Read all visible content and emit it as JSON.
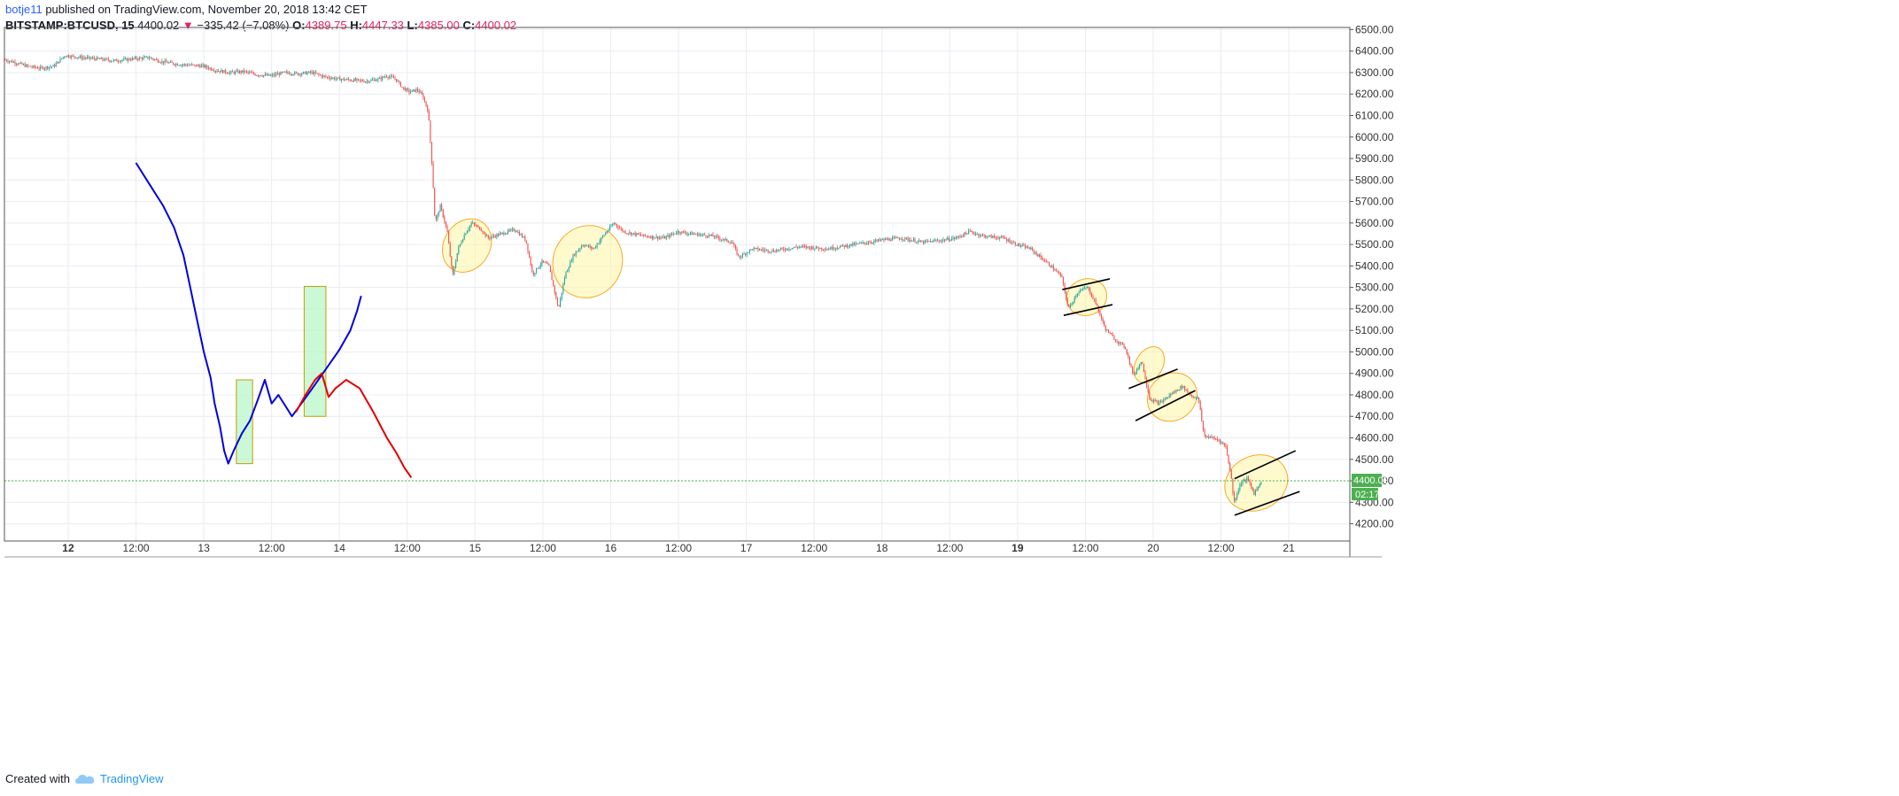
{
  "header": {
    "author": "botje11",
    "published": "published on TradingView.com, November 20, 2018 13:42 CET",
    "symbol": "BITSTAMP:BTCUSD, 15",
    "last": "4400.02",
    "change": "−335.42 (−7.08%)",
    "o_label": "O:",
    "o_value": "4389.75",
    "h_label": "H:",
    "h_value": "4447.33",
    "l_label": "L:",
    "l_value": "4385.00",
    "c_label": "C:",
    "c_value": "4400.02"
  },
  "footer": {
    "created_with": "Created with",
    "brand": "TradingView"
  },
  "colors": {
    "up": "#26a69a",
    "down": "#ef5350",
    "grid": "#e9ecf1",
    "last_price": "#4caf50",
    "ellipse_fill": "#fff59d",
    "ellipse_stroke": "#f9a825",
    "box_fill": "#b9f6ca",
    "box_stroke": "#c0a000",
    "blue_line": "#0000dd",
    "red_line": "#e00000",
    "trend_line": "#000000"
  },
  "chart_data": {
    "type": "candlestick",
    "y_ticks": [
      "4200.00",
      "4300.00",
      "4400.00",
      "4500.00",
      "4600.00",
      "4700.00",
      "4800.00",
      "4900.00",
      "5000.00",
      "5100.00",
      "5200.00",
      "5300.00",
      "5400.00",
      "5500.00",
      "5600.00",
      "5700.00",
      "5800.00",
      "5900.00",
      "6000.00",
      "6100.00",
      "6200.00",
      "6300.00",
      "6400.00",
      "6500.00"
    ],
    "x_ticks": [
      {
        "label": "12",
        "bold": true,
        "day": 12.0
      },
      {
        "label": "12:00",
        "bold": false,
        "day": 12.5
      },
      {
        "label": "13",
        "bold": false,
        "day": 13.0
      },
      {
        "label": "12:00",
        "bold": false,
        "day": 13.5
      },
      {
        "label": "14",
        "bold": false,
        "day": 14.0
      },
      {
        "label": "12:00",
        "bold": false,
        "day": 14.5
      },
      {
        "label": "15",
        "bold": false,
        "day": 15.0
      },
      {
        "label": "12:00",
        "bold": false,
        "day": 15.5
      },
      {
        "label": "16",
        "bold": false,
        "day": 16.0
      },
      {
        "label": "12:00",
        "bold": false,
        "day": 16.5
      },
      {
        "label": "17",
        "bold": false,
        "day": 17.0
      },
      {
        "label": "12:00",
        "bold": false,
        "day": 17.5
      },
      {
        "label": "18",
        "bold": false,
        "day": 18.0
      },
      {
        "label": "12:00",
        "bold": false,
        "day": 18.5
      },
      {
        "label": "19",
        "bold": true,
        "day": 19.0
      },
      {
        "label": "12:00",
        "bold": false,
        "day": 19.5
      },
      {
        "label": "20",
        "bold": false,
        "day": 20.0
      },
      {
        "label": "12:00",
        "bold": false,
        "day": 20.5
      },
      {
        "label": "21",
        "bold": false,
        "day": 21.0
      }
    ],
    "x_range": [
      11.53,
      21.45
    ],
    "y_range": [
      4120,
      6510
    ],
    "last_price": 4400.02,
    "last_price_label": "4400.02",
    "countdown_label": "02:17",
    "price_path": [
      [
        11.53,
        6360
      ],
      [
        11.6,
        6350
      ],
      [
        11.7,
        6330
      ],
      [
        11.8,
        6320
      ],
      [
        11.9,
        6330
      ],
      [
        11.98,
        6380
      ],
      [
        12.1,
        6370
      ],
      [
        12.2,
        6365
      ],
      [
        12.35,
        6355
      ],
      [
        12.5,
        6365
      ],
      [
        12.6,
        6370
      ],
      [
        12.7,
        6350
      ],
      [
        12.8,
        6340
      ],
      [
        12.9,
        6335
      ],
      [
        13.0,
        6330
      ],
      [
        13.1,
        6310
      ],
      [
        13.2,
        6300
      ],
      [
        13.3,
        6305
      ],
      [
        13.4,
        6290
      ],
      [
        13.5,
        6285
      ],
      [
        13.6,
        6300
      ],
      [
        13.7,
        6295
      ],
      [
        13.8,
        6300
      ],
      [
        13.9,
        6280
      ],
      [
        14.0,
        6270
      ],
      [
        14.1,
        6265
      ],
      [
        14.2,
        6260
      ],
      [
        14.3,
        6270
      ],
      [
        14.35,
        6285
      ],
      [
        14.42,
        6270
      ],
      [
        14.47,
        6230
      ],
      [
        14.52,
        6210
      ],
      [
        14.58,
        6220
      ],
      [
        14.62,
        6190
      ],
      [
        14.66,
        6120
      ],
      [
        14.69,
        5850
      ],
      [
        14.71,
        5600
      ],
      [
        14.75,
        5680
      ],
      [
        14.8,
        5560
      ],
      [
        14.84,
        5350
      ],
      [
        14.88,
        5480
      ],
      [
        14.93,
        5550
      ],
      [
        14.98,
        5600
      ],
      [
        15.05,
        5570
      ],
      [
        15.1,
        5530
      ],
      [
        15.2,
        5550
      ],
      [
        15.3,
        5570
      ],
      [
        15.38,
        5520
      ],
      [
        15.43,
        5360
      ],
      [
        15.5,
        5420
      ],
      [
        15.55,
        5400
      ],
      [
        15.62,
        5200
      ],
      [
        15.67,
        5360
      ],
      [
        15.73,
        5450
      ],
      [
        15.8,
        5500
      ],
      [
        15.88,
        5480
      ],
      [
        15.95,
        5540
      ],
      [
        16.03,
        5600
      ],
      [
        16.1,
        5560
      ],
      [
        16.25,
        5540
      ],
      [
        16.4,
        5530
      ],
      [
        16.5,
        5560
      ],
      [
        16.6,
        5550
      ],
      [
        16.75,
        5540
      ],
      [
        16.9,
        5510
      ],
      [
        16.95,
        5440
      ],
      [
        17.05,
        5480
      ],
      [
        17.2,
        5470
      ],
      [
        17.4,
        5490
      ],
      [
        17.6,
        5480
      ],
      [
        17.8,
        5500
      ],
      [
        18.0,
        5520
      ],
      [
        18.15,
        5530
      ],
      [
        18.3,
        5510
      ],
      [
        18.45,
        5520
      ],
      [
        18.55,
        5530
      ],
      [
        18.65,
        5560
      ],
      [
        18.75,
        5540
      ],
      [
        18.9,
        5530
      ],
      [
        19.0,
        5500
      ],
      [
        19.1,
        5480
      ],
      [
        19.25,
        5400
      ],
      [
        19.33,
        5350
      ],
      [
        19.38,
        5200
      ],
      [
        19.45,
        5280
      ],
      [
        19.52,
        5300
      ],
      [
        19.58,
        5230
      ],
      [
        19.65,
        5110
      ],
      [
        19.72,
        5060
      ],
      [
        19.8,
        5020
      ],
      [
        19.86,
        4890
      ],
      [
        19.92,
        4960
      ],
      [
        19.98,
        4780
      ],
      [
        20.05,
        4760
      ],
      [
        20.15,
        4810
      ],
      [
        20.22,
        4840
      ],
      [
        20.28,
        4800
      ],
      [
        20.34,
        4780
      ],
      [
        20.38,
        4610
      ],
      [
        20.44,
        4600
      ],
      [
        20.49,
        4590
      ],
      [
        20.54,
        4560
      ],
      [
        20.58,
        4420
      ],
      [
        20.6,
        4300
      ],
      [
        20.65,
        4390
      ],
      [
        20.7,
        4410
      ],
      [
        20.75,
        4340
      ],
      [
        20.8,
        4400
      ]
    ]
  },
  "drawings": {
    "ellipses": [
      {
        "cx": 14.94,
        "cy": 5495,
        "rx_days": 0.17,
        "ry_price": 130,
        "angle": -58
      },
      {
        "cx": 15.83,
        "cy": 5420,
        "rx_days": 0.27,
        "ry_price": 160,
        "angle": -62
      },
      {
        "cx": 19.51,
        "cy": 5255,
        "rx_days": 0.15,
        "ry_price": 85,
        "angle": -20
      },
      {
        "cx": 19.97,
        "cy": 4940,
        "rx_days": 0.1,
        "ry_price": 90,
        "angle": -60
      },
      {
        "cx": 20.14,
        "cy": 4790,
        "rx_days": 0.17,
        "ry_price": 120,
        "angle": -40
      },
      {
        "cx": 20.76,
        "cy": 4390,
        "rx_days": 0.2,
        "ry_price": 150,
        "angle": -25
      }
    ],
    "trend_lines": [
      [
        [
          19.33,
          5290
        ],
        [
          19.68,
          5340
        ]
      ],
      [
        [
          19.34,
          5170
        ],
        [
          19.7,
          5220
        ]
      ],
      [
        [
          19.82,
          4830
        ],
        [
          20.18,
          4920
        ]
      ],
      [
        [
          19.87,
          4680
        ],
        [
          20.31,
          4820
        ]
      ],
      [
        [
          20.6,
          4410
        ],
        [
          21.05,
          4540
        ]
      ],
      [
        [
          20.6,
          4240
        ],
        [
          21.08,
          4350
        ]
      ]
    ],
    "boxes": [
      {
        "x0": 13.24,
        "x1": 13.36,
        "y0": 4480,
        "y1": 4870
      },
      {
        "x0": 13.74,
        "x1": 13.9,
        "y0": 4700,
        "y1": 5305
      }
    ],
    "blue_path": [
      [
        12.5,
        5880
      ],
      [
        12.6,
        5780
      ],
      [
        12.7,
        5680
      ],
      [
        12.78,
        5580
      ],
      [
        12.85,
        5450
      ],
      [
        12.9,
        5300
      ],
      [
        12.95,
        5150
      ],
      [
        13.0,
        5000
      ],
      [
        13.05,
        4880
      ],
      [
        13.08,
        4760
      ],
      [
        13.12,
        4650
      ],
      [
        13.15,
        4540
      ],
      [
        13.18,
        4480
      ],
      [
        13.22,
        4540
      ],
      [
        13.28,
        4620
      ],
      [
        13.34,
        4680
      ],
      [
        13.4,
        4780
      ],
      [
        13.45,
        4870
      ],
      [
        13.5,
        4760
      ],
      [
        13.55,
        4800
      ],
      [
        13.6,
        4750
      ],
      [
        13.65,
        4700
      ],
      [
        13.72,
        4760
      ],
      [
        13.8,
        4830
      ],
      [
        13.9,
        4920
      ],
      [
        14.0,
        5010
      ],
      [
        14.08,
        5100
      ],
      [
        14.13,
        5190
      ],
      [
        14.16,
        5260
      ]
    ],
    "red_path": [
      [
        13.68,
        4720
      ],
      [
        13.75,
        4800
      ],
      [
        13.82,
        4870
      ],
      [
        13.87,
        4900
      ],
      [
        13.92,
        4790
      ],
      [
        13.97,
        4830
      ],
      [
        14.05,
        4870
      ],
      [
        14.15,
        4830
      ],
      [
        14.25,
        4720
      ],
      [
        14.35,
        4600
      ],
      [
        14.42,
        4530
      ],
      [
        14.48,
        4460
      ],
      [
        14.53,
        4415
      ]
    ]
  }
}
